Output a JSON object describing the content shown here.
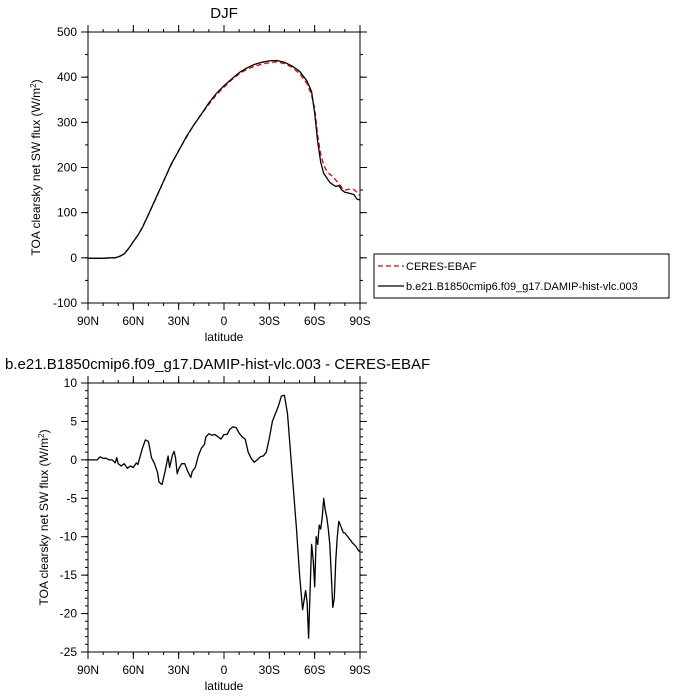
{
  "chart_data": [
    {
      "type": "line",
      "title": "DJF",
      "xlabel": "latitude",
      "ylabel": "TOA clearsky net SW flux (W/m²)",
      "ylabel_main": "TOA clearsky net SW flux (W/m",
      "ylabel_sup": "2",
      "ylabel_close": ")",
      "xlim": [
        90,
        -90
      ],
      "ylim": [
        -100,
        500
      ],
      "xticks": [
        90,
        60,
        30,
        0,
        -30,
        -60,
        -90
      ],
      "xtick_labels": [
        "90N",
        "60N",
        "30N",
        "0",
        "30S",
        "60S",
        "90S"
      ],
      "yticks": [
        -100,
        0,
        100,
        200,
        300,
        400,
        500
      ],
      "ytick_labels": [
        "-100",
        "0",
        "100",
        "200",
        "300",
        "400",
        "500"
      ],
      "legend": {
        "placement": "right",
        "entries": [
          "CERES-EBAF",
          "b.e21.B1850cmip6.f09_g17.DAMIP-hist-vlc.003"
        ]
      },
      "series": [
        {
          "name": "CERES-EBAF",
          "color": "#e00000",
          "dashed": true,
          "x": [
            90,
            80,
            75,
            72,
            70,
            68,
            66,
            64,
            62,
            60,
            57,
            54,
            50,
            45,
            40,
            35,
            30,
            25,
            20,
            15,
            10,
            5,
            0,
            -5,
            -10,
            -15,
            -20,
            -25,
            -30,
            -35,
            -40,
            -45,
            -50,
            -55,
            -58,
            -60,
            -62,
            -64,
            -66,
            -68,
            -70,
            -72,
            -74,
            -76,
            -78,
            -80,
            -83,
            -86,
            -88,
            -90
          ],
          "y": [
            -1,
            -1,
            0,
            0,
            2,
            5,
            9,
            17,
            26,
            36,
            50,
            68,
            95,
            132,
            170,
            206,
            238,
            266,
            294,
            318,
            340,
            361,
            378,
            394,
            407,
            417,
            424,
            429,
            432,
            434,
            430,
            422,
            408,
            385,
            360,
            330,
            270,
            230,
            205,
            192,
            185,
            180,
            172,
            165,
            155,
            150,
            152,
            151,
            145,
            137
          ]
        },
        {
          "name": "b.e21.B1850cmip6.f09_g17.DAMIP-hist-vlc.003",
          "color": "#000000",
          "dashed": false,
          "x": [
            90,
            80,
            75,
            72,
            70,
            68,
            66,
            64,
            62,
            60,
            57,
            54,
            50,
            45,
            40,
            35,
            30,
            25,
            20,
            15,
            10,
            5,
            0,
            -5,
            -10,
            -15,
            -20,
            -25,
            -30,
            -35,
            -40,
            -45,
            -50,
            -55,
            -58,
            -60,
            -62,
            -64,
            -66,
            -68,
            -70,
            -72,
            -74,
            -76,
            -78,
            -80,
            -83,
            -86,
            -88,
            -90
          ],
          "y": [
            -1,
            -1,
            0,
            0,
            2,
            5,
            9,
            17,
            26,
            36,
            50,
            67,
            96,
            133,
            170,
            207,
            237,
            268,
            294,
            318,
            343,
            364,
            381,
            396,
            410,
            420,
            428,
            433,
            436,
            437,
            433,
            425,
            413,
            391,
            368,
            320,
            257,
            212,
            187,
            177,
            167,
            162,
            158,
            160,
            150,
            145,
            143,
            140,
            130,
            128
          ]
        }
      ]
    },
    {
      "type": "line",
      "title": "b.e21.B1850cmip6.f09_g17.DAMIP-hist-vlc.003 - CERES-EBAF",
      "xlabel": "latitude",
      "ylabel": "TOA clearsky net SW flux (W/m²)",
      "ylabel_main": "TOA clearsky net SW flux (W/m",
      "ylabel_sup": "2",
      "ylabel_close": ")",
      "xlim": [
        90,
        -90
      ],
      "ylim": [
        -25,
        10
      ],
      "xticks": [
        90,
        60,
        30,
        0,
        -30,
        -60,
        -90
      ],
      "xtick_labels": [
        "90N",
        "60N",
        "30N",
        "0",
        "30S",
        "60S",
        "90S"
      ],
      "yticks": [
        -25,
        -20,
        -15,
        -10,
        -5,
        0,
        5,
        10
      ],
      "ytick_labels": [
        "-25",
        "-20",
        "-15",
        "-10",
        "-5",
        "0",
        "5",
        "10"
      ],
      "series": [
        {
          "color": "#000000",
          "dashed": false,
          "x": [
            90,
            84,
            82,
            80,
            78,
            76,
            74,
            72,
            71,
            70,
            68,
            66,
            64,
            62,
            60,
            58,
            57,
            55,
            54,
            52,
            50,
            48,
            46,
            44,
            43,
            41,
            39,
            37,
            36,
            34,
            33,
            32,
            31,
            30,
            28,
            26,
            24,
            22,
            21,
            19,
            17,
            15,
            13,
            12,
            10,
            8,
            6,
            4,
            2,
            0,
            -2,
            -4,
            -6,
            -8,
            -10,
            -12,
            -14,
            -16,
            -18,
            -20,
            -22,
            -24,
            -26,
            -28,
            -30,
            -32,
            -34,
            -36,
            -38,
            -40,
            -42,
            -44,
            -46,
            -48,
            -50,
            -52,
            -54,
            -55,
            -56,
            -57,
            -58,
            -59,
            -60,
            -61,
            -62,
            -63,
            -64,
            -65,
            -66,
            -67,
            -68,
            -69,
            -70,
            -71,
            -72,
            -73,
            -74,
            -75,
            -76,
            -77,
            -78,
            -79,
            -80,
            -81,
            -82,
            -83,
            -84,
            -85,
            -86,
            -87,
            -88,
            -89,
            -90
          ],
          "y": [
            0,
            0,
            0.4,
            0.2,
            0.2,
            0,
            0,
            -0.4,
            0.3,
            -0.5,
            -0.8,
            -0.5,
            -1.1,
            -0.8,
            -1.0,
            -0.4,
            -0.6,
            0.8,
            1.5,
            2.6,
            2.4,
            0.3,
            -0.5,
            -1.6,
            -2.9,
            -3.2,
            -1.5,
            0.5,
            -1.0,
            0.7,
            1.1,
            0.2,
            -1.8,
            -1.2,
            -0.5,
            -0.5,
            -1.5,
            -2.3,
            -1.5,
            -1.0,
            0.5,
            1.5,
            2.0,
            3.0,
            3.4,
            3.2,
            3.3,
            3.0,
            2.7,
            3.3,
            3.3,
            4.0,
            4.3,
            4.2,
            3.5,
            3.0,
            2.7,
            1.0,
            0.2,
            -0.3,
            0,
            0.4,
            0.5,
            1.0,
            2.8,
            5.0,
            6.0,
            7.0,
            8.3,
            8.4,
            6.0,
            1.0,
            -4.0,
            -9.0,
            -15.0,
            -19.5,
            -17.0,
            -18.5,
            -23.2,
            -17.0,
            -11.0,
            -13.0,
            -16.5,
            -10.0,
            -11.0,
            -8.5,
            -9.0,
            -7.5,
            -5.0,
            -6.5,
            -7.5,
            -9.0,
            -11.0,
            -15.0,
            -19.2,
            -18.0,
            -13.0,
            -10.0,
            -8.0,
            -8.5,
            -9.0,
            -9.5,
            -9.5,
            -9.8,
            -10.0,
            -10.3,
            -10.5,
            -10.8,
            -11.0,
            -11.2,
            -11.5,
            -11.8,
            -12.0
          ]
        }
      ]
    }
  ]
}
